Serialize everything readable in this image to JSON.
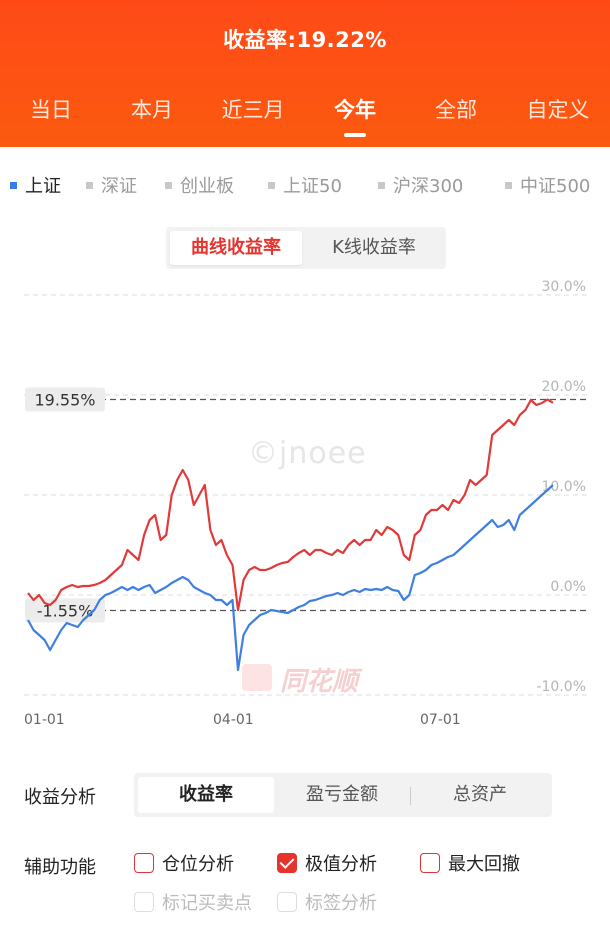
{
  "header": {
    "title": "收益率:19.22%",
    "tabs": [
      "当日",
      "本月",
      "近三月",
      "今年",
      "全部",
      "自定义"
    ],
    "active_tab": "今年",
    "accent": "#ff4a17"
  },
  "index_selector": {
    "items": [
      "上证",
      "深证",
      "创业板",
      "上证50",
      "沪深300",
      "中证500"
    ],
    "active": "上证"
  },
  "chart_toggle": {
    "options": [
      "曲线收益率",
      "K线收益率"
    ],
    "active": "曲线收益率"
  },
  "watermark": {
    "text": "©jnoee",
    "brand": "同花顺"
  },
  "chart_data": {
    "type": "line",
    "ylim": [
      -10,
      30
    ],
    "y_ticks": [
      "30.0%",
      "20.0%",
      "10.0%",
      "0.0%",
      "-10.0%"
    ],
    "x_ticks": [
      "01-01",
      "04-01",
      "07-01"
    ],
    "markers": {
      "max_label": "19.55%",
      "min_label": "-1.55%",
      "max_value": 19.55,
      "min_value": -1.55
    },
    "colors": {
      "portfolio": "#e03a3a",
      "index": "#3f7fe0",
      "marker_line": "#555555",
      "grid": "#dddddd"
    },
    "x_domain": [
      0,
      190
    ],
    "series": [
      {
        "role": "portfolio",
        "x": [
          0,
          2,
          4,
          6,
          8,
          10,
          12,
          14,
          16,
          18,
          20,
          22,
          24,
          26,
          28,
          30,
          32,
          34,
          36,
          38,
          40,
          42,
          44,
          46,
          48,
          50,
          52,
          54,
          56,
          58,
          60,
          62,
          64,
          66,
          68,
          70,
          72,
          74,
          76,
          78,
          80,
          82,
          84,
          86,
          88,
          90,
          92,
          94,
          96,
          98,
          100,
          102,
          104,
          106,
          108,
          110,
          112,
          114,
          116,
          118,
          120,
          122,
          124,
          126,
          128,
          130,
          132,
          134,
          136,
          138,
          140,
          142,
          144,
          146,
          148,
          150,
          152,
          154,
          156,
          158,
          160,
          162,
          164,
          166,
          168,
          170,
          172,
          174,
          176,
          178,
          180,
          182,
          184,
          186,
          188,
          190
        ],
        "values": [
          0.2,
          -0.5,
          0.0,
          -0.8,
          -1.0,
          -0.5,
          0.5,
          0.8,
          1.0,
          0.8,
          0.9,
          0.9,
          1.0,
          1.2,
          1.5,
          2.0,
          2.5,
          3.0,
          4.5,
          4.0,
          3.5,
          6.0,
          7.5,
          8.0,
          5.5,
          6.0,
          10.0,
          11.5,
          12.5,
          11.5,
          9.0,
          10.0,
          11.0,
          6.5,
          5.0,
          5.5,
          4.0,
          3.0,
          -1.5,
          1.5,
          2.5,
          2.8,
          2.5,
          2.5,
          2.7,
          3.0,
          3.2,
          3.3,
          3.8,
          4.2,
          4.5,
          4.0,
          4.5,
          4.5,
          4.2,
          4.0,
          4.5,
          4.2,
          5.0,
          5.5,
          5.0,
          5.5,
          5.5,
          6.5,
          6.0,
          6.8,
          6.5,
          6.0,
          4.0,
          3.5,
          6.0,
          6.5,
          8.0,
          8.5,
          8.5,
          9.0,
          8.5,
          9.5,
          9.2,
          10.0,
          11.5,
          11.0,
          11.5,
          12.0,
          16.0,
          16.5,
          17.0,
          17.5,
          17.0,
          18.0,
          18.5,
          19.5,
          19.0,
          19.2,
          19.55,
          19.22
        ]
      },
      {
        "role": "index",
        "x": [
          0,
          2,
          4,
          6,
          8,
          10,
          12,
          14,
          16,
          18,
          20,
          22,
          24,
          26,
          28,
          30,
          32,
          34,
          36,
          38,
          40,
          42,
          44,
          46,
          48,
          50,
          52,
          54,
          56,
          58,
          60,
          62,
          64,
          66,
          68,
          70,
          72,
          74,
          76,
          78,
          80,
          82,
          84,
          86,
          88,
          90,
          92,
          94,
          96,
          98,
          100,
          102,
          104,
          106,
          108,
          110,
          112,
          114,
          116,
          118,
          120,
          122,
          124,
          126,
          128,
          130,
          132,
          134,
          136,
          138,
          140,
          142,
          144,
          146,
          148,
          150,
          152,
          154,
          156,
          158,
          160,
          162,
          164,
          166,
          168,
          170,
          172,
          174,
          176,
          178,
          180,
          182,
          184,
          186,
          188,
          190
        ],
        "values": [
          -2.5,
          -3.5,
          -4.0,
          -4.5,
          -5.5,
          -4.5,
          -3.5,
          -2.8,
          -3.0,
          -3.2,
          -2.5,
          -2.0,
          -1.5,
          -0.5,
          0.0,
          0.2,
          0.5,
          0.8,
          0.5,
          0.8,
          0.5,
          0.8,
          1.0,
          0.2,
          0.5,
          0.8,
          1.2,
          1.5,
          1.8,
          1.5,
          0.8,
          0.5,
          0.2,
          0.0,
          -0.5,
          -0.5,
          -1.0,
          -0.5,
          -7.5,
          -4.0,
          -3.0,
          -2.5,
          -2.0,
          -1.8,
          -1.5,
          -1.6,
          -1.7,
          -1.8,
          -1.5,
          -1.2,
          -1.0,
          -0.6,
          -0.5,
          -0.3,
          -0.1,
          0.0,
          0.2,
          0.0,
          0.3,
          0.5,
          0.3,
          0.6,
          0.5,
          0.6,
          0.5,
          0.8,
          0.5,
          0.4,
          -0.5,
          0.0,
          2.0,
          2.2,
          2.5,
          3.0,
          3.2,
          3.5,
          3.8,
          4.0,
          4.5,
          5.0,
          5.5,
          6.0,
          6.5,
          7.0,
          7.5,
          6.8,
          7.0,
          7.5,
          6.5,
          8.0,
          8.5,
          9.0,
          9.5,
          10.0,
          10.5,
          11.0
        ]
      }
    ]
  },
  "analysis": {
    "label": "收益分析",
    "options": [
      "收益率",
      "盈亏金额",
      "总资产"
    ],
    "active": "收益率"
  },
  "aux": {
    "label": "辅助功能",
    "checks": [
      {
        "label": "仓位分析",
        "checked": false,
        "enabled": true
      },
      {
        "label": "极值分析",
        "checked": true,
        "enabled": true
      },
      {
        "label": "最大回撤",
        "checked": false,
        "enabled": true
      },
      {
        "label": "标记买卖点",
        "checked": false,
        "enabled": false
      },
      {
        "label": "标签分析",
        "checked": false,
        "enabled": false
      }
    ]
  }
}
